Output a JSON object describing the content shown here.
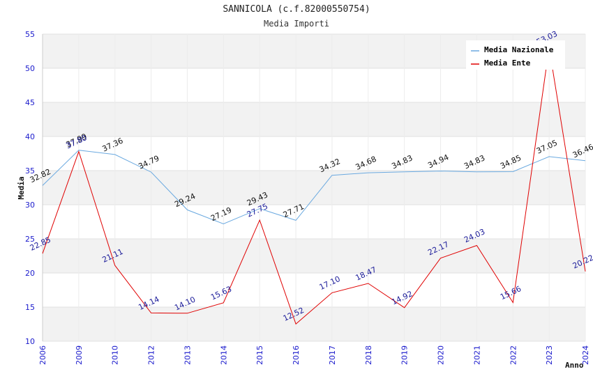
{
  "chart_data": {
    "type": "line",
    "title": "SANNICOLA (c.f.82000550754)",
    "subtitle": "Media Importi",
    "xlabel": "Anno",
    "ylabel": "Media",
    "ylim": [
      10,
      55
    ],
    "yticks": [
      10,
      15,
      20,
      25,
      30,
      35,
      40,
      45,
      50,
      55
    ],
    "categories": [
      "2006",
      "2009",
      "2010",
      "2012",
      "2013",
      "2014",
      "2015",
      "2016",
      "2017",
      "2018",
      "2019",
      "2020",
      "2021",
      "2022",
      "2023",
      "2024"
    ],
    "grid": true,
    "legend_position": "top-right",
    "series": [
      {
        "name": "Media Nazionale",
        "color": "#6aa9e0",
        "values": [
          32.82,
          37.99,
          37.36,
          34.79,
          29.24,
          27.19,
          29.43,
          27.71,
          34.32,
          34.68,
          34.83,
          34.94,
          34.83,
          34.85,
          37.05,
          36.46
        ],
        "labels": [
          "32.82",
          "37.99",
          "37.36",
          "34.79",
          "29.24",
          "27.19",
          "29.43",
          "27.71",
          "34.32",
          "34.68",
          "34.83",
          "34.94",
          "34.83",
          "34.85",
          "37.05",
          "36.46"
        ]
      },
      {
        "name": "Media Ente",
        "color": "#e00000",
        "values": [
          22.85,
          37.8,
          21.11,
          14.14,
          14.1,
          15.63,
          27.75,
          12.52,
          17.1,
          18.47,
          14.92,
          22.17,
          24.03,
          15.66,
          53.03,
          20.22
        ],
        "labels": [
          "22.85",
          "37.80",
          "21.11",
          "14.14",
          "14.10",
          "15.63",
          "27.75",
          "12.52",
          "17.10",
          "18.47",
          "14.92",
          "22.17",
          "24.03",
          "15.66",
          "53.03",
          "20.22"
        ]
      }
    ]
  }
}
